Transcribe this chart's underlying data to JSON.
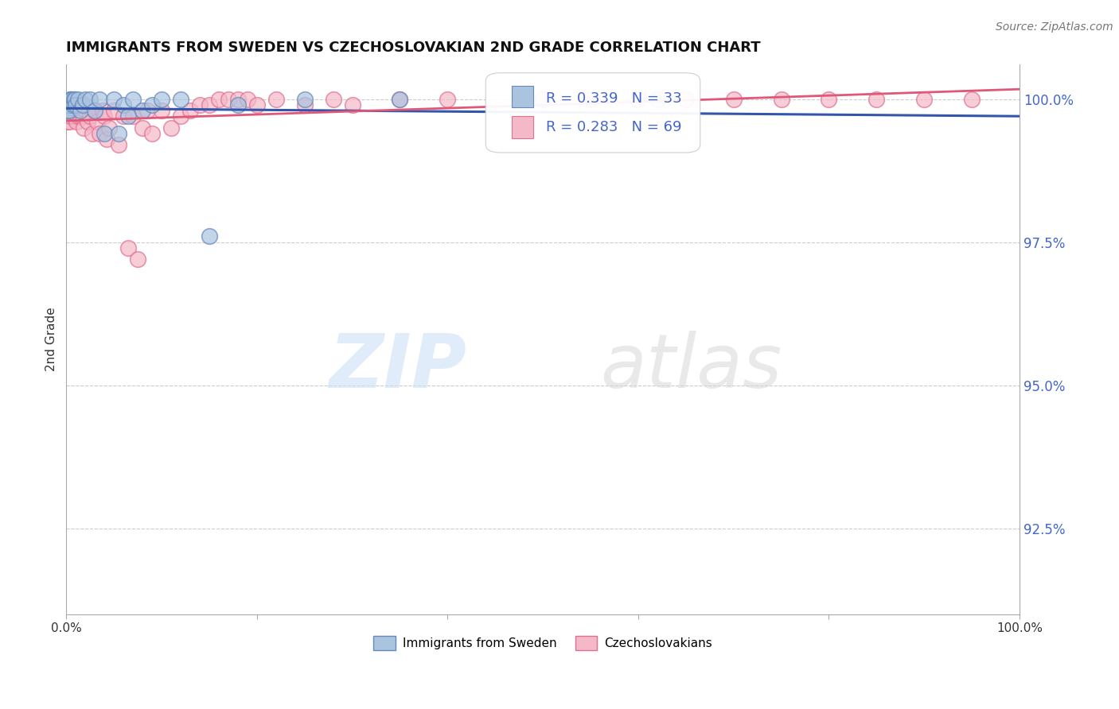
{
  "title": "IMMIGRANTS FROM SWEDEN VS CZECHOSLOVAKIAN 2ND GRADE CORRELATION CHART",
  "source": "Source: ZipAtlas.com",
  "ylabel": "2nd Grade",
  "xlim": [
    0.0,
    1.0
  ],
  "ylim": [
    0.91,
    1.006
  ],
  "yticks": [
    1.0,
    0.975,
    0.95,
    0.925
  ],
  "ytick_labels": [
    "100.0%",
    "97.5%",
    "95.0%",
    "92.5%"
  ],
  "xticks": [
    0.0,
    0.2,
    0.4,
    0.6,
    0.8,
    1.0
  ],
  "xtick_labels": [
    "0.0%",
    "",
    "",
    "",
    "",
    "100.0%"
  ],
  "sweden_color": "#aac4e0",
  "czech_color": "#f5b8c8",
  "sweden_edge_color": "#6688bb",
  "czech_edge_color": "#e07090",
  "sweden_line_color": "#3355aa",
  "czech_line_color": "#e05878",
  "background_color": "#ffffff",
  "grid_color": "#cccccc",
  "sweden_x": [
    0.001,
    0.001,
    0.002,
    0.003,
    0.004,
    0.005,
    0.006,
    0.007,
    0.008,
    0.009,
    0.01,
    0.012,
    0.015,
    0.017,
    0.02,
    0.025,
    0.03,
    0.035,
    0.04,
    0.05,
    0.055,
    0.06,
    0.065,
    0.07,
    0.08,
    0.09,
    0.1,
    0.12,
    0.15,
    0.18,
    0.25,
    0.35,
    0.62
  ],
  "sweden_y": [
    0.998,
    0.999,
    0.999,
    0.998,
    1.0,
    1.0,
    1.0,
    0.999,
    1.0,
    1.0,
    0.999,
    1.0,
    0.998,
    0.999,
    1.0,
    1.0,
    0.998,
    1.0,
    0.994,
    1.0,
    0.994,
    0.999,
    0.997,
    1.0,
    0.998,
    0.999,
    1.0,
    1.0,
    0.976,
    0.999,
    1.0,
    1.0,
    1.0
  ],
  "czech_x": [
    0.001,
    0.001,
    0.002,
    0.002,
    0.003,
    0.003,
    0.004,
    0.005,
    0.006,
    0.007,
    0.008,
    0.009,
    0.01,
    0.011,
    0.012,
    0.013,
    0.014,
    0.015,
    0.016,
    0.017,
    0.018,
    0.019,
    0.02,
    0.022,
    0.025,
    0.027,
    0.03,
    0.032,
    0.035,
    0.038,
    0.04,
    0.042,
    0.045,
    0.05,
    0.055,
    0.06,
    0.065,
    0.07,
    0.075,
    0.08,
    0.085,
    0.09,
    0.1,
    0.11,
    0.12,
    0.13,
    0.14,
    0.15,
    0.16,
    0.17,
    0.18,
    0.19,
    0.2,
    0.22,
    0.25,
    0.28,
    0.3,
    0.35,
    0.4,
    0.5,
    0.55,
    0.6,
    0.65,
    0.7,
    0.75,
    0.8,
    0.85,
    0.9,
    0.95
  ],
  "czech_y": [
    0.998,
    0.996,
    0.999,
    0.997,
    0.998,
    0.996,
    0.999,
    0.997,
    0.999,
    0.998,
    0.997,
    0.998,
    0.999,
    0.996,
    0.997,
    0.999,
    0.998,
    0.997,
    0.998,
    0.997,
    0.995,
    0.999,
    0.998,
    0.996,
    0.997,
    0.994,
    0.998,
    0.996,
    0.994,
    0.998,
    0.997,
    0.993,
    0.995,
    0.998,
    0.992,
    0.997,
    0.974,
    0.997,
    0.972,
    0.995,
    0.998,
    0.994,
    0.998,
    0.995,
    0.997,
    0.998,
    0.999,
    0.999,
    1.0,
    1.0,
    1.0,
    1.0,
    0.999,
    1.0,
    0.999,
    1.0,
    0.999,
    1.0,
    1.0,
    1.0,
    1.0,
    1.0,
    1.0,
    1.0,
    1.0,
    1.0,
    1.0,
    1.0,
    1.0
  ],
  "legend_r1": "R = 0.339",
  "legend_n1": "N = 33",
  "legend_r2": "R = 0.283",
  "legend_n2": "N = 69",
  "tick_label_color": "#4466cc",
  "title_color": "#111111",
  "ylabel_color": "#333333"
}
